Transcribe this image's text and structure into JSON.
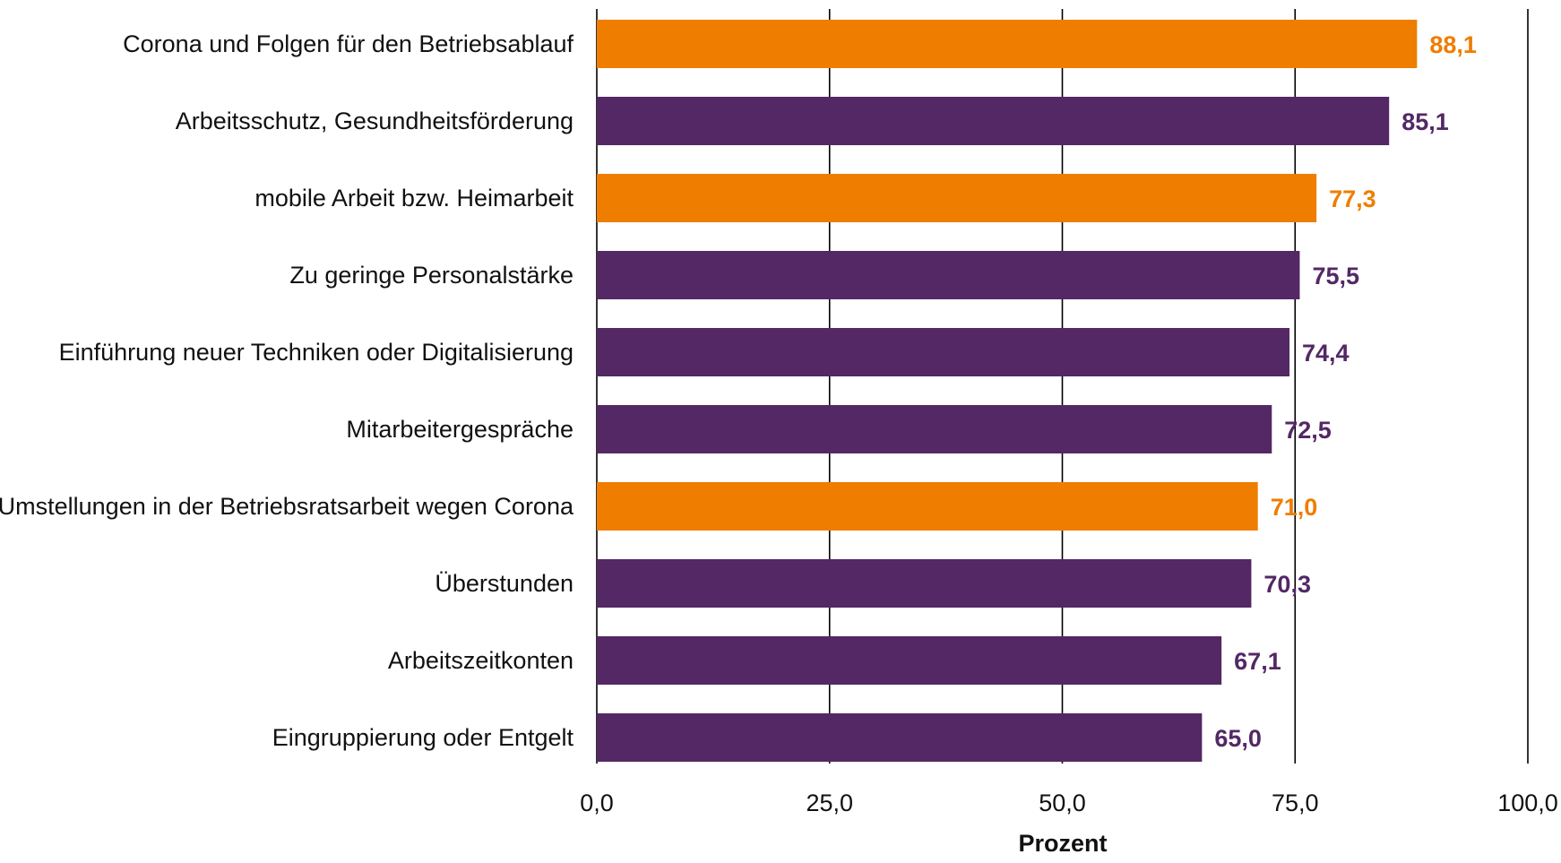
{
  "chart_data": {
    "type": "bar",
    "orientation": "horizontal",
    "categories": [
      "Corona und Folgen für den Betriebsablauf",
      "Arbeitsschutz, Gesundheitsförderung",
      "mobile Arbeit bzw. Heimarbeit",
      "Zu geringe Personalstärke",
      "Einführung neuer Techniken oder Digitalisierung",
      "Mitarbeitergespräche",
      "Umstellungen in der Betriebsratsarbeit wegen Corona",
      "Überstunden",
      "Arbeitszeitkonten",
      "Eingruppierung oder Entgelt"
    ],
    "values": [
      88.1,
      85.1,
      77.3,
      75.5,
      74.4,
      72.5,
      71.0,
      70.3,
      67.1,
      65.0
    ],
    "value_labels": [
      "88,1",
      "85,1",
      "77,3",
      "75,5",
      "74,4",
      "72,5",
      "71,0",
      "70,3",
      "67,1",
      "65,0"
    ],
    "highlight": [
      true,
      false,
      true,
      false,
      false,
      false,
      true,
      false,
      false,
      false
    ],
    "xlabel": "Prozent",
    "xlim": [
      0,
      100
    ],
    "xticks": [
      0,
      25,
      50,
      75,
      100
    ],
    "xtick_labels": [
      "0,0",
      "25,0",
      "50,0",
      "75,0",
      "100,0"
    ],
    "grid": true,
    "colors": {
      "highlight": "#ef7d00",
      "default": "#532865"
    }
  }
}
